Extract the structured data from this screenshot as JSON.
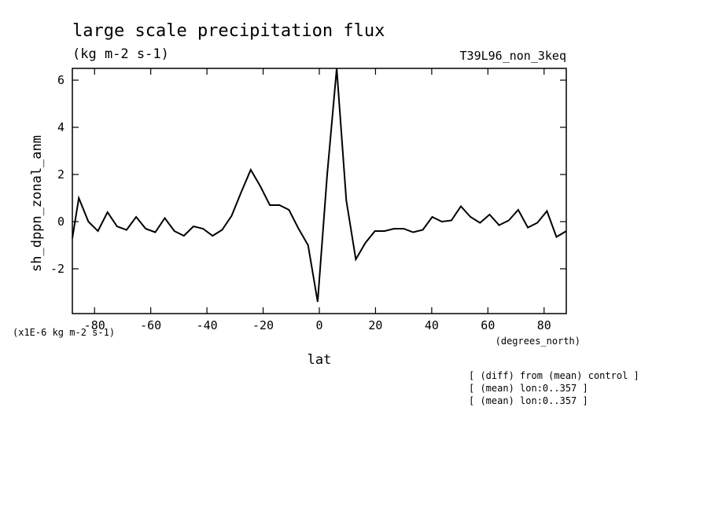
{
  "chart_data": {
    "type": "line",
    "title": "large scale precipitation flux",
    "subtitle": "(kg m-2 s-1)",
    "dataset_label": "T39L96_non_3keq",
    "ylabel": "sh_dppn_zonal_anm",
    "xlabel": "lat",
    "x_units": "(degrees_north)",
    "y_scale_note": "(x1E-6 kg m-2 s-1)",
    "notes": [
      "[ (diff) from (mean) control ]",
      "[ (mean) lon:0..357 ]",
      "[ (mean) lon:0..357 ]"
    ],
    "xlim": [
      -87.9,
      87.9
    ],
    "ylim": [
      -3.9,
      6.5
    ],
    "x_ticks": [
      -80,
      -60,
      -40,
      -20,
      0,
      20,
      40,
      60,
      80
    ],
    "x_tick_labels": [
      "-80",
      "-60",
      "-40",
      "-20",
      "0",
      "20",
      "40",
      "60",
      "80"
    ],
    "y_ticks": [
      -2,
      0,
      2,
      4,
      6
    ],
    "y_tick_labels": [
      "-2",
      "0",
      "2",
      "4",
      "6"
    ],
    "grid": false,
    "series": [
      {
        "x": [
          -87.9,
          -85.6,
          -82.2,
          -78.8,
          -75.4,
          -72.0,
          -68.6,
          -65.2,
          -61.8,
          -58.4,
          -55.0,
          -51.6,
          -48.2,
          -44.8,
          -41.4,
          -38.0,
          -34.6,
          -31.2,
          -27.8,
          -24.4,
          -21.0,
          -17.6,
          -14.2,
          -10.8,
          -7.4,
          -4.0,
          -0.6,
          2.8,
          6.2,
          9.6,
          13.0,
          16.4,
          19.8,
          23.2,
          26.6,
          30.0,
          33.4,
          36.8,
          40.2,
          43.6,
          47.0,
          50.4,
          53.8,
          57.2,
          60.6,
          64.0,
          67.4,
          70.8,
          74.2,
          77.6,
          81.0,
          84.4,
          87.9
        ],
        "y": [
          -0.7,
          1.0,
          0.0,
          -0.4,
          0.4,
          -0.2,
          -0.35,
          0.2,
          -0.3,
          -0.45,
          0.15,
          -0.4,
          -0.6,
          -0.2,
          -0.3,
          -0.6,
          -0.35,
          0.25,
          1.25,
          2.2,
          1.5,
          0.7,
          0.7,
          0.5,
          -0.3,
          -1.0,
          -3.4,
          2.0,
          6.5,
          0.9,
          -1.6,
          -0.9,
          -0.4,
          -0.4,
          -0.3,
          -0.3,
          -0.45,
          -0.35,
          0.2,
          0.0,
          0.05,
          0.65,
          0.2,
          -0.05,
          0.3,
          -0.15,
          0.05,
          0.5,
          -0.25,
          -0.05,
          0.45,
          -0.65,
          -0.4
        ],
        "color": "#000000"
      }
    ]
  }
}
